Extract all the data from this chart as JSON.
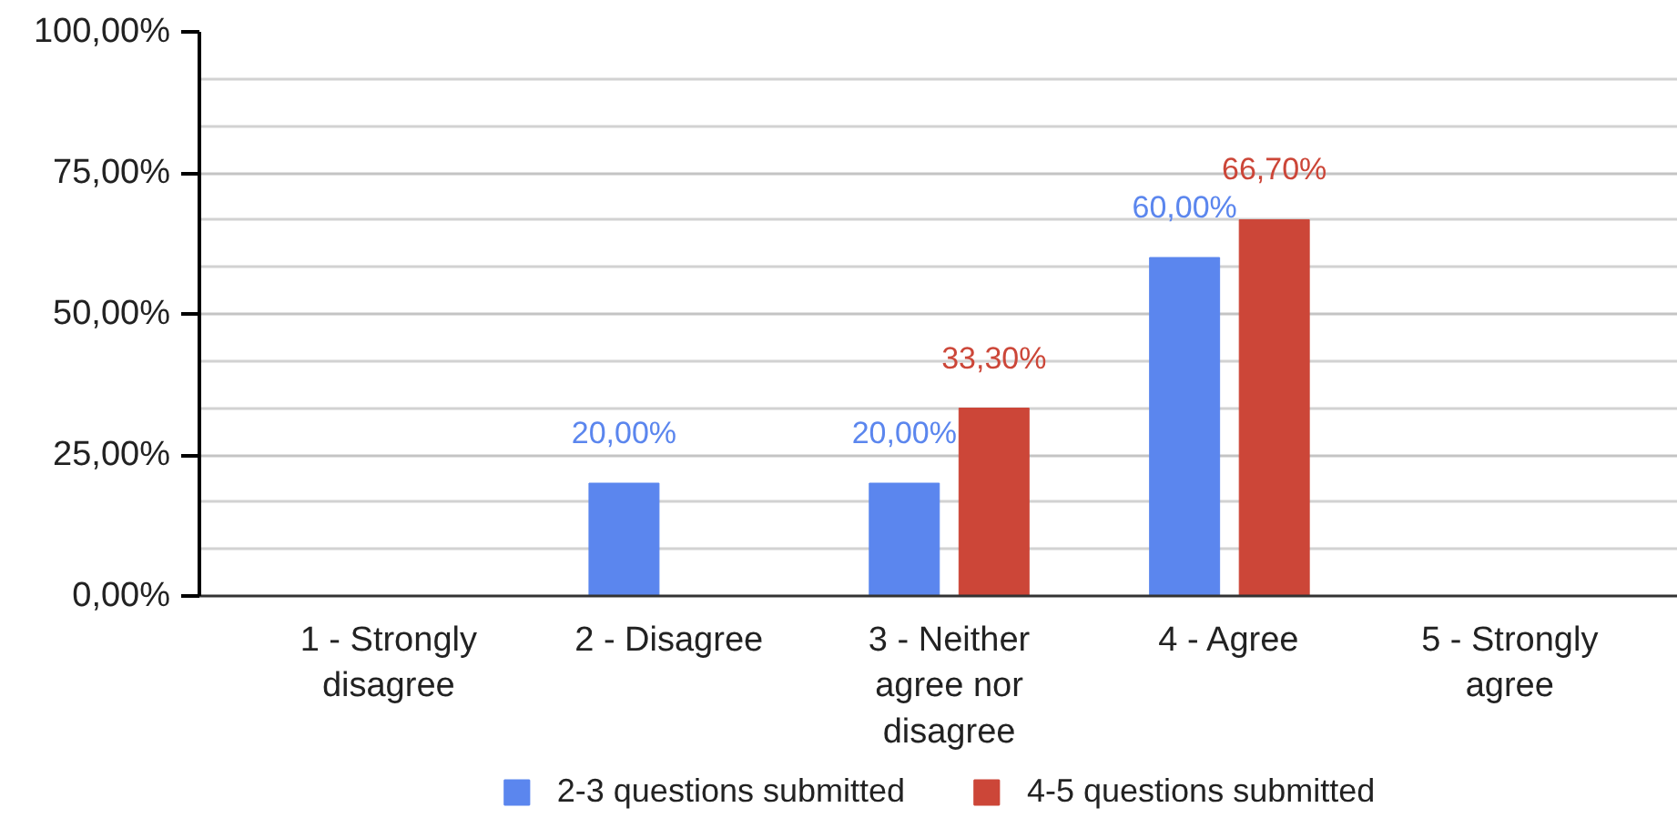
{
  "chart_data": {
    "type": "bar",
    "categories": [
      "1 - Strongly disagree",
      "2 - Disagree",
      "3 - Neither agree nor disagree",
      "4 - Agree",
      "5 - Strongly agree"
    ],
    "series": [
      {
        "name": "2-3 questions submitted",
        "color": "#5b86ee",
        "values": [
          null,
          20,
          20,
          60,
          null
        ],
        "value_labels": [
          null,
          "20,00%",
          "20,00%",
          "60,00%",
          null
        ]
      },
      {
        "name": "4-5 questions submitted",
        "color": "#cc4638",
        "values": [
          null,
          null,
          33.3,
          66.7,
          null
        ],
        "value_labels": [
          null,
          null,
          "33,30%",
          "66,70%",
          null
        ]
      }
    ],
    "ylim": [
      0,
      100
    ],
    "yticks": [
      {
        "value": 0,
        "label": "0,00%"
      },
      {
        "value": 8.33,
        "label": null
      },
      {
        "value": 16.67,
        "label": null
      },
      {
        "value": 25,
        "label": "25,00%"
      },
      {
        "value": 33.33,
        "label": null
      },
      {
        "value": 41.67,
        "label": null
      },
      {
        "value": 50,
        "label": "50,00%"
      },
      {
        "value": 58.33,
        "label": null
      },
      {
        "value": 66.67,
        "label": null
      },
      {
        "value": 75,
        "label": "75,00%"
      },
      {
        "value": 83.33,
        "label": null
      },
      {
        "value": 91.67,
        "label": null
      },
      {
        "value": 100,
        "label": "100,00%"
      }
    ],
    "grid": "y",
    "legend": "bottom"
  }
}
